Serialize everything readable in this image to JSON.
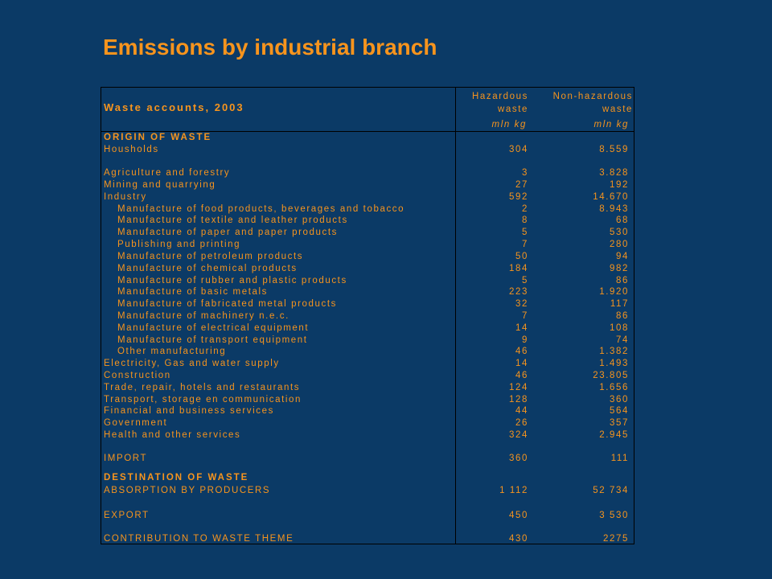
{
  "title": "Emissions by industrial branch",
  "colors": {
    "background": "#0b3a66",
    "accent": "#f7941d",
    "border": "#000000"
  },
  "table": {
    "caption": "Waste accounts, 2003",
    "columns": [
      {
        "line1": "Hazardous",
        "line2": "waste",
        "unit": "mln kg"
      },
      {
        "line1": "Non-hazardous",
        "line2": "waste",
        "unit": "mln kg"
      }
    ],
    "sections": {
      "origin": "ORIGIN OF WASTE",
      "destination": "DESTINATION OF WASTE"
    },
    "rows": [
      {
        "label": "Housholds",
        "hazardous": "304",
        "non_hazardous": "8.559"
      },
      {
        "label": "Agriculture and forestry",
        "hazardous": "3",
        "non_hazardous": "3.828"
      },
      {
        "label": "Mining and quarrying",
        "hazardous": "27",
        "non_hazardous": "192"
      },
      {
        "label": "Industry",
        "hazardous": "592",
        "non_hazardous": "14.670"
      },
      {
        "label": "Manufacture of food products, beverages and tobacco",
        "hazardous": "2",
        "non_hazardous": "8.943"
      },
      {
        "label": "Manufacture of textile and leather products",
        "hazardous": "8",
        "non_hazardous": "68"
      },
      {
        "label": "Manufacture of paper and paper products",
        "hazardous": "5",
        "non_hazardous": "530"
      },
      {
        "label": "Publishing and printing",
        "hazardous": "7",
        "non_hazardous": "280"
      },
      {
        "label": "Manufacture of petroleum products",
        "hazardous": "50",
        "non_hazardous": "94"
      },
      {
        "label": "Manufacture of chemical products",
        "hazardous": "184",
        "non_hazardous": "982"
      },
      {
        "label": "Manufacture of rubber and plastic products",
        "hazardous": "5",
        "non_hazardous": "86"
      },
      {
        "label": "Manufacture of basic metals",
        "hazardous": "223",
        "non_hazardous": "1.920"
      },
      {
        "label": "Manufacture of fabricated metal products",
        "hazardous": "32",
        "non_hazardous": "117"
      },
      {
        "label": "Manufacture of machinery n.e.c.",
        "hazardous": "7",
        "non_hazardous": "86"
      },
      {
        "label": "Manufacture of electrical equipment",
        "hazardous": "14",
        "non_hazardous": "108"
      },
      {
        "label": "Manufacture of transport equipment",
        "hazardous": "9",
        "non_hazardous": "74"
      },
      {
        "label": "Other manufacturing",
        "hazardous": "46",
        "non_hazardous": "1.382"
      },
      {
        "label": "Electricity, Gas and water supply",
        "hazardous": "14",
        "non_hazardous": "1.493"
      },
      {
        "label": "Construction",
        "hazardous": "46",
        "non_hazardous": "23.805"
      },
      {
        "label": "Trade, repair, hotels and restaurants",
        "hazardous": "124",
        "non_hazardous": "1.656"
      },
      {
        "label": "Transport, storage en communication",
        "hazardous": "128",
        "non_hazardous": "360"
      },
      {
        "label": "Financial and business services",
        "hazardous": "44",
        "non_hazardous": "564"
      },
      {
        "label": "Government",
        "hazardous": "26",
        "non_hazardous": "357"
      },
      {
        "label": "Health and other services",
        "hazardous": "324",
        "non_hazardous": "2.945"
      },
      {
        "label": "IMPORT",
        "hazardous": "360",
        "non_hazardous": "111"
      },
      {
        "label": "ABSORPTION BY PRODUCERS",
        "hazardous": "1 112",
        "non_hazardous": "52 734"
      },
      {
        "label": "EXPORT",
        "hazardous": "450",
        "non_hazardous": "3 530"
      },
      {
        "label": "CONTRIBUTION TO WASTE THEME",
        "hazardous": "430",
        "non_hazardous": "2275"
      }
    ]
  }
}
